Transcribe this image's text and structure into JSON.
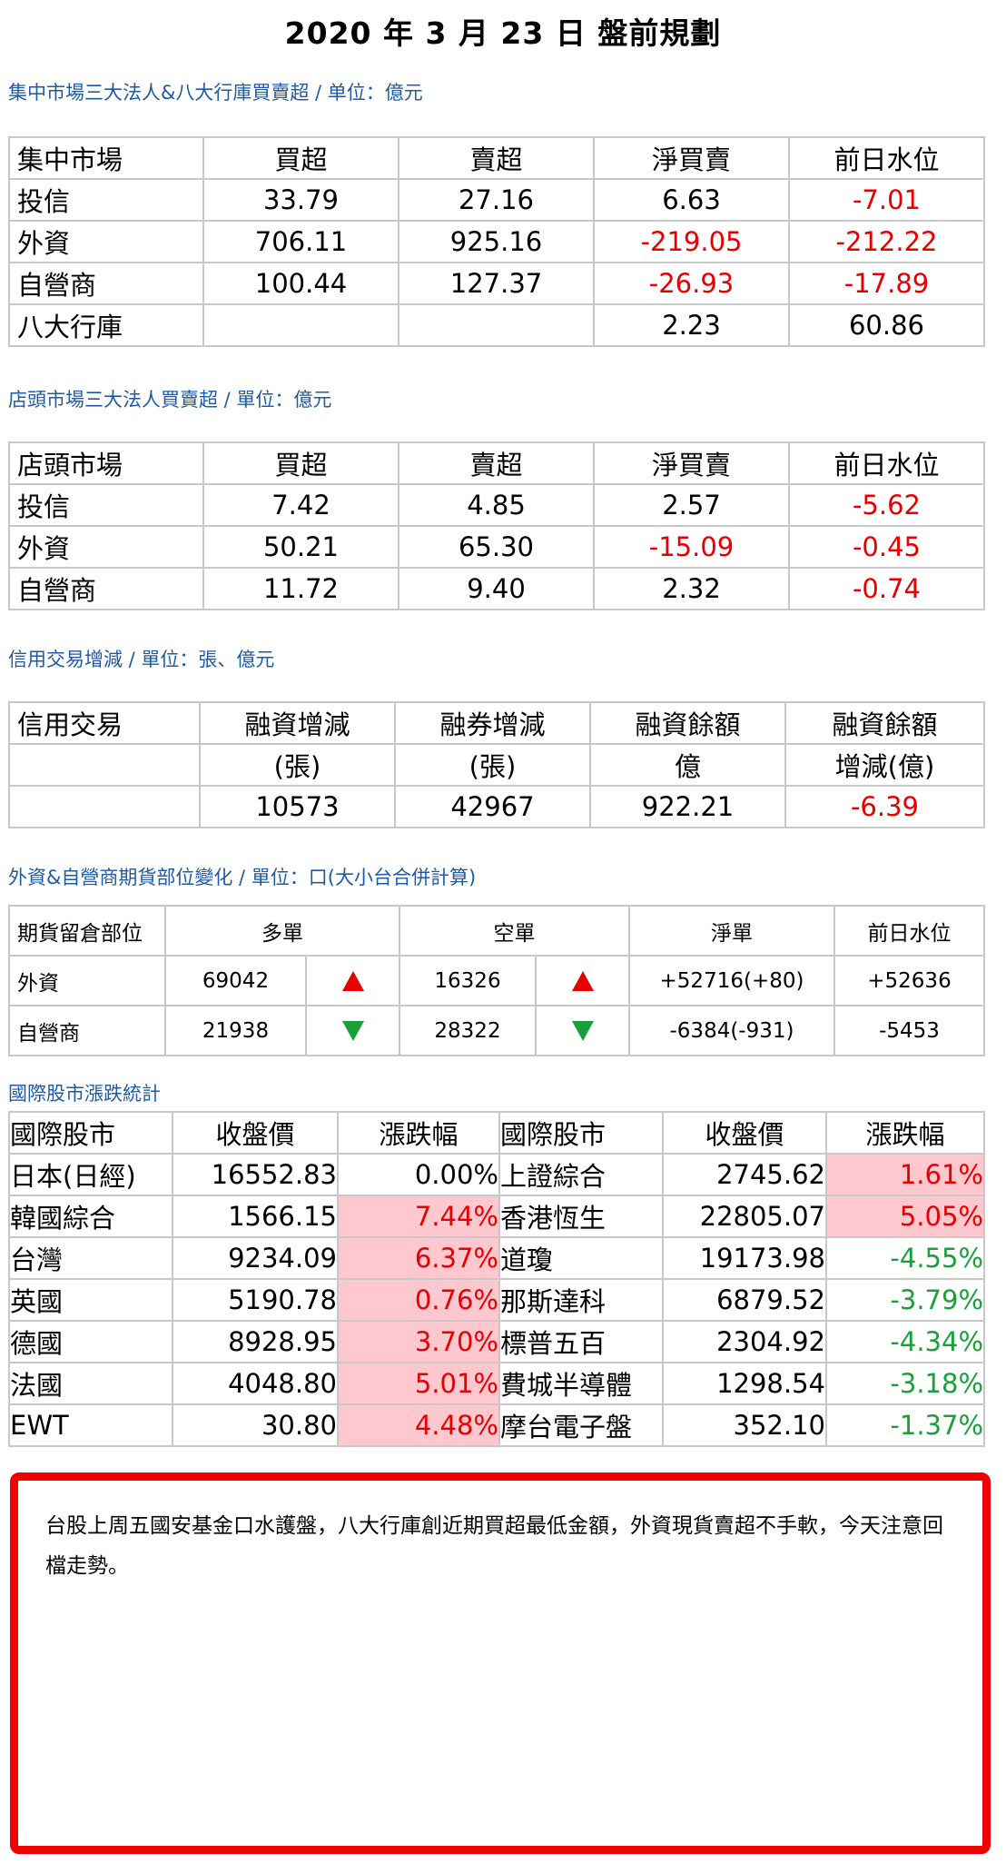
{
  "title": "2020 年 3 月 23 日  盤前規劃",
  "listed": {
    "label": "集中市場三大法人&八大行庫買賣超 / 单位：億元",
    "headers": [
      "集中市場",
      "買超",
      "賣超",
      "淨買賣",
      "前日水位"
    ],
    "rows": [
      {
        "name": "投信",
        "buy": "33.79",
        "sell": "27.16",
        "net": "6.63",
        "prev": "-7.01"
      },
      {
        "name": "外資",
        "buy": "706.11",
        "sell": "925.16",
        "net": "-219.05",
        "prev": "-212.22"
      },
      {
        "name": "自營商",
        "buy": "100.44",
        "sell": "127.37",
        "net": "-26.93",
        "prev": "-17.89"
      },
      {
        "name": "八大行庫",
        "buy": "",
        "sell": "",
        "net": "2.23",
        "prev": "60.86"
      }
    ]
  },
  "otc": {
    "label": "店頭市場三大法人買賣超 / 單位：億元",
    "headers": [
      "店頭市場",
      "買超",
      "賣超",
      "淨買賣",
      "前日水位"
    ],
    "rows": [
      {
        "name": "投信",
        "buy": "7.42",
        "sell": "4.85",
        "net": "2.57",
        "prev": "-5.62"
      },
      {
        "name": "外資",
        "buy": "50.21",
        "sell": "65.30",
        "net": "-15.09",
        "prev": "-0.45"
      },
      {
        "name": "自營商",
        "buy": "11.72",
        "sell": "9.40",
        "net": "2.32",
        "prev": "-0.74"
      }
    ]
  },
  "credit": {
    "label": "信用交易增減 / 單位：張、億元",
    "headers": [
      "信用交易",
      "融資增減",
      "融券增減",
      "融資餘額",
      "融資餘額"
    ],
    "subheaders": [
      "",
      "(張)",
      "(張)",
      "億",
      "增減(億)"
    ],
    "row": {
      "name": "",
      "margin_change": "10573",
      "short_change": "42967",
      "margin_balance": "922.21",
      "balance_change": "-6.39"
    }
  },
  "futures": {
    "label": "外資&自營商期貨部位變化 / 單位：口(大小台合併計算)",
    "headers": [
      "期貨留倉部位",
      "多單",
      "空單",
      "淨單",
      "前日水位"
    ],
    "rows": [
      {
        "name": "外資",
        "long": "69042",
        "long_dir": "up",
        "short": "16326",
        "short_dir": "up",
        "net": "+52716(+80)",
        "prev": "+52636"
      },
      {
        "name": "自營商",
        "long": "21938",
        "long_dir": "down",
        "short": "28322",
        "short_dir": "down",
        "net": "-6384(-931)",
        "prev": "-5453"
      }
    ]
  },
  "intl": {
    "label": "國際股市漲跌統計",
    "headers": [
      "國際股市",
      "收盤價",
      "漲跌幅",
      "國際股市",
      "收盤價",
      "漲跌幅"
    ],
    "rows": [
      {
        "a_name": "日本(日經)",
        "a_close": "16552.83",
        "a_chg": "0.00%",
        "b_name": "上證綜合",
        "b_close": "2745.62",
        "b_chg": "1.61%"
      },
      {
        "a_name": "韓國綜合",
        "a_close": "1566.15",
        "a_chg": "7.44%",
        "b_name": "香港恆生",
        "b_close": "22805.07",
        "b_chg": "5.05%"
      },
      {
        "a_name": "台灣",
        "a_close": "9234.09",
        "a_chg": "6.37%",
        "b_name": "道瓊",
        "b_close": "19173.98",
        "b_chg": "-4.55%"
      },
      {
        "a_name": "英國",
        "a_close": "5190.78",
        "a_chg": "0.76%",
        "b_name": "那斯達科",
        "b_close": "6879.52",
        "b_chg": "-3.79%"
      },
      {
        "a_name": "德國",
        "a_close": "8928.95",
        "a_chg": "3.70%",
        "b_name": "標普五百",
        "b_close": "2304.92",
        "b_chg": "-4.34%"
      },
      {
        "a_name": "法國",
        "a_close": "4048.80",
        "a_chg": "5.01%",
        "b_name": "費城半導體",
        "b_close": "1298.54",
        "b_chg": "-3.18%"
      },
      {
        "a_name": "EWT",
        "a_close": "30.80",
        "a_chg": "4.48%",
        "b_name": "摩台電子盤",
        "b_close": "352.10",
        "b_chg": "-1.37%"
      }
    ]
  },
  "colors": {
    "up": "#e60000",
    "down": "#1aa03a",
    "highlight": "#ffc7ce",
    "label": "#1f5aa6",
    "box_border": "#f00000"
  },
  "commentary": "台股上周五國安基金口水護盤，八大行庫創近期買超最低金額，外資現貨賣超不手軟，今天注意回檔走勢。"
}
